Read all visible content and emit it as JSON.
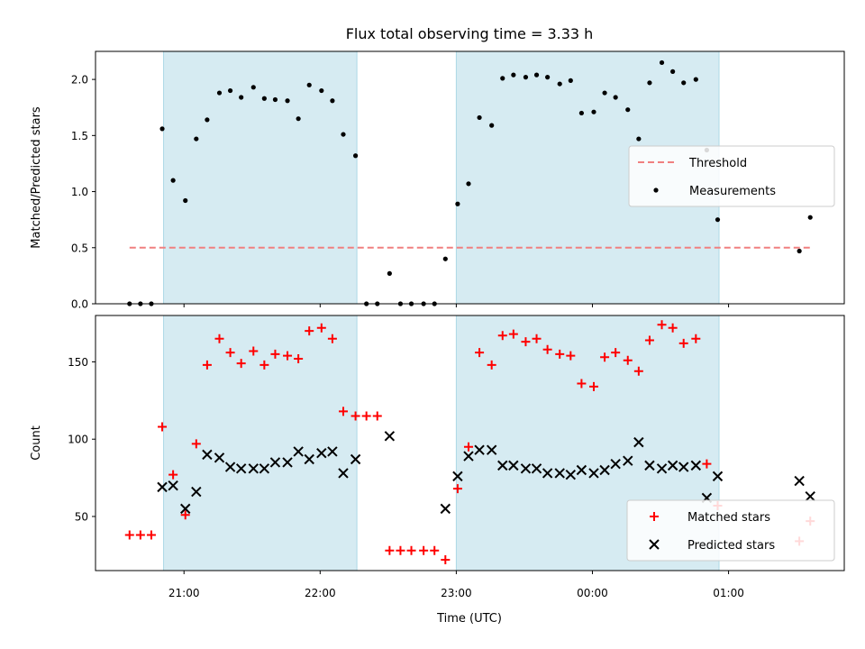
{
  "chart_data": {
    "title": "Flux total observing time = 3.33 h",
    "xlabel": "Time (UTC)",
    "x_unit": "hours since 00:00 UTC",
    "x_ticks": [
      {
        "value": -3,
        "label": "21:00"
      },
      {
        "value": -2,
        "label": "22:00"
      },
      {
        "value": -1,
        "label": "23:00"
      },
      {
        "value": 0,
        "label": "00:00"
      },
      {
        "value": 1,
        "label": "01:00"
      }
    ],
    "xlim": [
      -3.65,
      1.85
    ],
    "shaded_intervals": [
      [
        -3.15,
        -1.73
      ],
      [
        -1.0,
        0.93
      ]
    ],
    "panels": [
      {
        "type": "scatter",
        "ylabel": "Matched/Predicted stars",
        "ylim": [
          0,
          2.25
        ],
        "y_ticks": [
          "0.0",
          "0.5",
          "1.0",
          "1.5",
          "2.0"
        ],
        "y_tick_values": [
          0,
          0.5,
          1.0,
          1.5,
          2.0
        ],
        "legend_position": "center-right",
        "threshold": {
          "name": "Threshold",
          "y": 0.5,
          "x_range": [
            -3.4,
            1.6
          ],
          "color": "#f08080"
        },
        "series": [
          {
            "name": "Measurements",
            "color": "#000000",
            "points": [
              [
                -3.4,
                0.0
              ],
              [
                -3.32,
                0.0
              ],
              [
                -3.24,
                0.0
              ],
              [
                -3.16,
                1.56
              ],
              [
                -3.08,
                1.1
              ],
              [
                -2.99,
                0.92
              ],
              [
                -2.91,
                1.47
              ],
              [
                -2.83,
                1.64
              ],
              [
                -2.74,
                1.88
              ],
              [
                -2.66,
                1.9
              ],
              [
                -2.58,
                1.84
              ],
              [
                -2.49,
                1.93
              ],
              [
                -2.41,
                1.83
              ],
              [
                -2.33,
                1.82
              ],
              [
                -2.24,
                1.81
              ],
              [
                -2.16,
                1.65
              ],
              [
                -2.08,
                1.95
              ],
              [
                -1.99,
                1.9
              ],
              [
                -1.91,
                1.81
              ],
              [
                -1.83,
                1.51
              ],
              [
                -1.74,
                1.32
              ],
              [
                -1.66,
                0.0
              ],
              [
                -1.58,
                0.0
              ],
              [
                -1.49,
                0.27
              ],
              [
                -1.41,
                0.0
              ],
              [
                -1.33,
                0.0
              ],
              [
                -1.24,
                0.0
              ],
              [
                -1.16,
                0.0
              ],
              [
                -1.08,
                0.4
              ],
              [
                -0.99,
                0.89
              ],
              [
                -0.91,
                1.07
              ],
              [
                -0.83,
                1.66
              ],
              [
                -0.74,
                1.59
              ],
              [
                -0.66,
                2.01
              ],
              [
                -0.58,
                2.04
              ],
              [
                -0.49,
                2.02
              ],
              [
                -0.41,
                2.04
              ],
              [
                -0.33,
                2.02
              ],
              [
                -0.24,
                1.96
              ],
              [
                -0.16,
                1.99
              ],
              [
                -0.08,
                1.7
              ],
              [
                0.01,
                1.71
              ],
              [
                0.09,
                1.88
              ],
              [
                0.17,
                1.84
              ],
              [
                0.26,
                1.73
              ],
              [
                0.34,
                1.47
              ],
              [
                0.42,
                1.97
              ],
              [
                0.51,
                2.15
              ],
              [
                0.59,
                2.07
              ],
              [
                0.67,
                1.97
              ],
              [
                0.76,
                2.0
              ],
              [
                0.84,
                1.37
              ],
              [
                0.92,
                0.75
              ],
              [
                1.52,
                0.47
              ],
              [
                1.6,
                0.77
              ]
            ]
          }
        ]
      },
      {
        "type": "scatter",
        "ylabel": "Count",
        "ylim": [
          15,
          180
        ],
        "y_ticks": [
          "50",
          "100",
          "150"
        ],
        "y_tick_values": [
          50,
          100,
          150
        ],
        "legend_position": "lower-right",
        "series": [
          {
            "name": "Matched stars",
            "marker": "+",
            "color": "#ff0000",
            "points": [
              [
                -3.4,
                38
              ],
              [
                -3.32,
                38
              ],
              [
                -3.24,
                38
              ],
              [
                -3.16,
                108
              ],
              [
                -3.08,
                77
              ],
              [
                -2.99,
                51
              ],
              [
                -2.91,
                97
              ],
              [
                -2.83,
                148
              ],
              [
                -2.74,
                165
              ],
              [
                -2.66,
                156
              ],
              [
                -2.58,
                149
              ],
              [
                -2.49,
                157
              ],
              [
                -2.41,
                148
              ],
              [
                -2.33,
                155
              ],
              [
                -2.24,
                154
              ],
              [
                -2.16,
                152
              ],
              [
                -2.08,
                170
              ],
              [
                -1.99,
                172
              ],
              [
                -1.91,
                165
              ],
              [
                -1.83,
                118
              ],
              [
                -1.74,
                115
              ],
              [
                -1.66,
                115
              ],
              [
                -1.58,
                115
              ],
              [
                -1.49,
                28
              ],
              [
                -1.41,
                28
              ],
              [
                -1.33,
                28
              ],
              [
                -1.24,
                28
              ],
              [
                -1.16,
                28
              ],
              [
                -1.08,
                22
              ],
              [
                -0.99,
                68
              ],
              [
                -0.91,
                95
              ],
              [
                -0.83,
                156
              ],
              [
                -0.74,
                148
              ],
              [
                -0.66,
                167
              ],
              [
                -0.58,
                168
              ],
              [
                -0.49,
                163
              ],
              [
                -0.41,
                165
              ],
              [
                -0.33,
                158
              ],
              [
                -0.24,
                155
              ],
              [
                -0.16,
                154
              ],
              [
                -0.08,
                136
              ],
              [
                0.01,
                134
              ],
              [
                0.09,
                153
              ],
              [
                0.17,
                156
              ],
              [
                0.26,
                151
              ],
              [
                0.34,
                144
              ],
              [
                0.42,
                164
              ],
              [
                0.51,
                174
              ],
              [
                0.59,
                172
              ],
              [
                0.67,
                162
              ],
              [
                0.76,
                165
              ],
              [
                0.84,
                84
              ],
              [
                0.92,
                57
              ],
              [
                1.52,
                34
              ],
              [
                1.6,
                47
              ]
            ]
          },
          {
            "name": "Predicted stars",
            "marker": "x",
            "color": "#000000",
            "points": [
              [
                -3.16,
                69
              ],
              [
                -3.08,
                70
              ],
              [
                -2.99,
                55
              ],
              [
                -2.91,
                66
              ],
              [
                -2.83,
                90
              ],
              [
                -2.74,
                88
              ],
              [
                -2.66,
                82
              ],
              [
                -2.58,
                81
              ],
              [
                -2.49,
                81
              ],
              [
                -2.41,
                81
              ],
              [
                -2.33,
                85
              ],
              [
                -2.24,
                85
              ],
              [
                -2.16,
                92
              ],
              [
                -2.08,
                87
              ],
              [
                -1.99,
                91
              ],
              [
                -1.91,
                92
              ],
              [
                -1.83,
                78
              ],
              [
                -1.74,
                87
              ],
              [
                -1.49,
                102
              ],
              [
                -1.08,
                55
              ],
              [
                -0.99,
                76
              ],
              [
                -0.91,
                89
              ],
              [
                -0.83,
                93
              ],
              [
                -0.74,
                93
              ],
              [
                -0.66,
                83
              ],
              [
                -0.58,
                83
              ],
              [
                -0.49,
                81
              ],
              [
                -0.41,
                81
              ],
              [
                -0.33,
                78
              ],
              [
                -0.24,
                78
              ],
              [
                -0.16,
                77
              ],
              [
                -0.08,
                80
              ],
              [
                0.01,
                78
              ],
              [
                0.09,
                80
              ],
              [
                0.17,
                84
              ],
              [
                0.26,
                86
              ],
              [
                0.34,
                98
              ],
              [
                0.42,
                83
              ],
              [
                0.51,
                81
              ],
              [
                0.59,
                83
              ],
              [
                0.67,
                82
              ],
              [
                0.76,
                83
              ],
              [
                0.84,
                62
              ],
              [
                0.92,
                76
              ],
              [
                1.52,
                73
              ],
              [
                1.6,
                63
              ]
            ]
          }
        ]
      }
    ]
  }
}
